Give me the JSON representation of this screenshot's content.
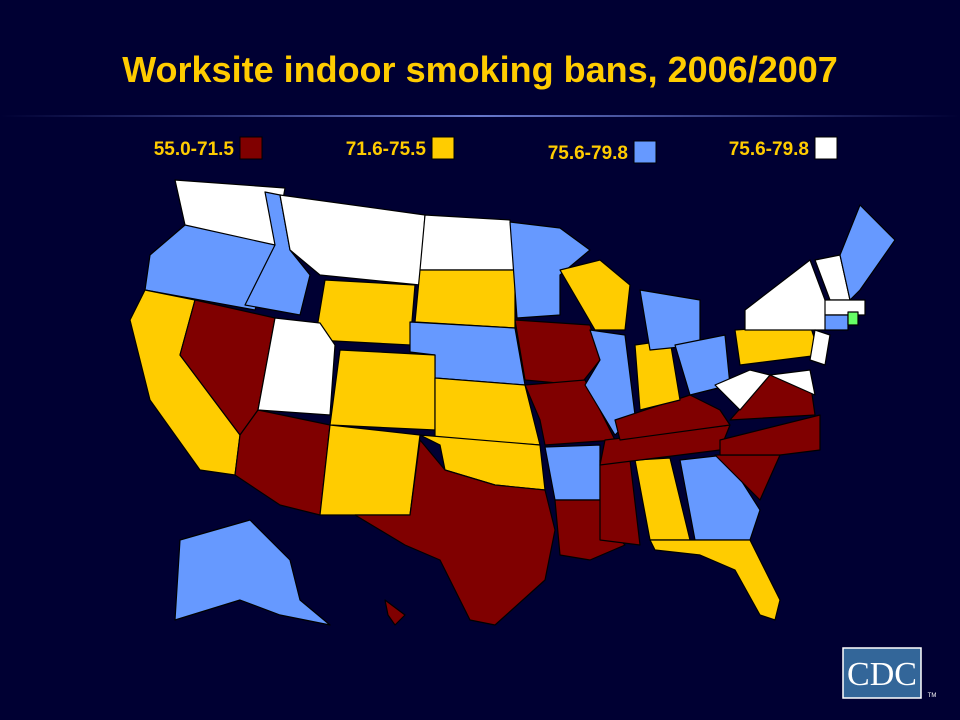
{
  "title": "Worksite indoor smoking bans, 2006/2007",
  "legend": [
    {
      "label": "55.0-71.5",
      "color": "#800000"
    },
    {
      "label": "71.6-75.5",
      "color": "#ffcc00"
    },
    {
      "label": "75.6-79.8",
      "color": "#6699ff"
    },
    {
      "label": "75.6-79.8",
      "color": "#ffffff"
    }
  ],
  "logo": {
    "text": "CDC",
    "mark": "TM"
  }
}
